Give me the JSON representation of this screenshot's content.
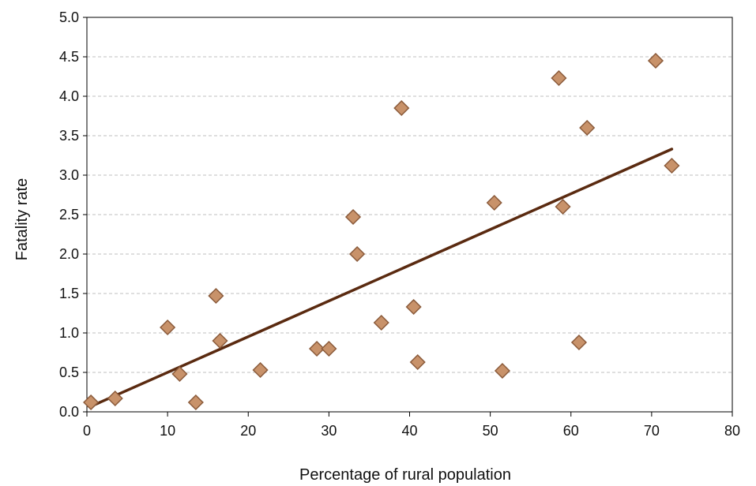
{
  "chart_data": {
    "type": "scatter",
    "xlabel": "Percentage of rural population",
    "ylabel": "Fatality rate",
    "xlim": [
      0,
      80
    ],
    "ylim": [
      0,
      5
    ],
    "x_ticks": [
      "0",
      "10",
      "20",
      "30",
      "40",
      "50",
      "60",
      "70",
      "80"
    ],
    "y_ticks": [
      "0.0",
      "0.5",
      "1.0",
      "1.5",
      "2.0",
      "2.5",
      "3.0",
      "3.5",
      "4.0",
      "4.5",
      "5.0"
    ],
    "grid": "horizontal dashed",
    "series": [
      {
        "points": [
          {
            "x": 0.5,
            "y": 0.12
          },
          {
            "x": 3.5,
            "y": 0.17
          },
          {
            "x": 10,
            "y": 1.07
          },
          {
            "x": 11.5,
            "y": 0.48
          },
          {
            "x": 13.5,
            "y": 0.12
          },
          {
            "x": 16,
            "y": 1.47
          },
          {
            "x": 16.5,
            "y": 0.9
          },
          {
            "x": 21.5,
            "y": 0.53
          },
          {
            "x": 28.5,
            "y": 0.8
          },
          {
            "x": 30,
            "y": 0.8
          },
          {
            "x": 33,
            "y": 2.47
          },
          {
            "x": 33.5,
            "y": 2.0
          },
          {
            "x": 36.5,
            "y": 1.13
          },
          {
            "x": 39,
            "y": 3.85
          },
          {
            "x": 40.5,
            "y": 1.33
          },
          {
            "x": 41,
            "y": 0.63
          },
          {
            "x": 50.5,
            "y": 2.65
          },
          {
            "x": 51.5,
            "y": 0.52
          },
          {
            "x": 58.5,
            "y": 4.23
          },
          {
            "x": 59,
            "y": 2.6
          },
          {
            "x": 61,
            "y": 0.88
          },
          {
            "x": 62,
            "y": 3.6
          },
          {
            "x": 70.5,
            "y": 4.45
          },
          {
            "x": 72.5,
            "y": 3.12
          }
        ]
      }
    ],
    "trendline": {
      "x": [
        0.5,
        72.5
      ],
      "y": [
        0.07,
        3.33
      ]
    },
    "colors": {
      "marker_fill": "#c8926a",
      "marker_stroke": "#8a5a3a",
      "trendline": "#5a2a10",
      "grid": "#bfbfbf",
      "axis": "#000000"
    }
  }
}
